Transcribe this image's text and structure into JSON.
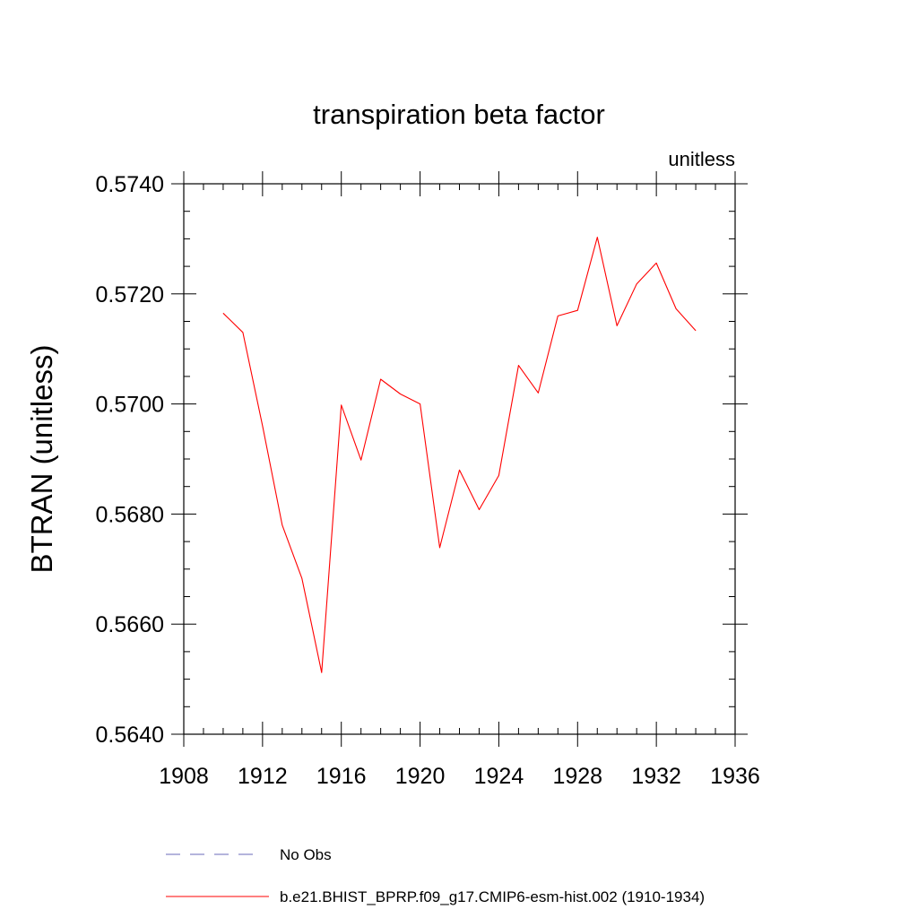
{
  "chart_data": {
    "type": "line",
    "title": "transpiration beta factor",
    "units_label": "unitless",
    "ylabel": "BTRAN  (unitless)",
    "xlabel": "",
    "xlim": [
      1908,
      1936
    ],
    "ylim": [
      0.564,
      0.574
    ],
    "x_ticks": [
      "1908",
      "1912",
      "1916",
      "1920",
      "1924",
      "1928",
      "1932",
      "1936"
    ],
    "y_ticks": [
      "0.5640",
      "0.5660",
      "0.5680",
      "0.5700",
      "0.5720",
      "0.5740"
    ],
    "series": [
      {
        "name": "b.e21.BHIST_BPRP.f09_g17.CMIP6-esm-hist.002 (1910-1934)",
        "color": "#ff0000",
        "style": "solid",
        "x": [
          1910,
          1911,
          1912,
          1913,
          1914,
          1915,
          1916,
          1917,
          1918,
          1919,
          1920,
          1921,
          1922,
          1923,
          1924,
          1925,
          1926,
          1927,
          1928,
          1929,
          1930,
          1931,
          1932,
          1933,
          1934
        ],
        "y": [
          0.57165,
          0.5713,
          0.5696,
          0.5678,
          0.56683,
          0.56512,
          0.56998,
          0.56898,
          0.57045,
          0.57018,
          0.57,
          0.56739,
          0.5688,
          0.56808,
          0.5687,
          0.5707,
          0.5702,
          0.5716,
          0.5717,
          0.57303,
          0.57142,
          0.57218,
          0.57256,
          0.57173,
          0.57133
        ]
      }
    ],
    "legend": {
      "placement": "bottom",
      "entries": [
        {
          "label": "No Obs",
          "color": "#6a6ab8",
          "style": "dashed"
        },
        {
          "label": "b.e21.BHIST_BPRP.f09_g17.CMIP6-esm-hist.002 (1910-1934)",
          "color": "#ff0000",
          "style": "solid"
        }
      ]
    }
  }
}
